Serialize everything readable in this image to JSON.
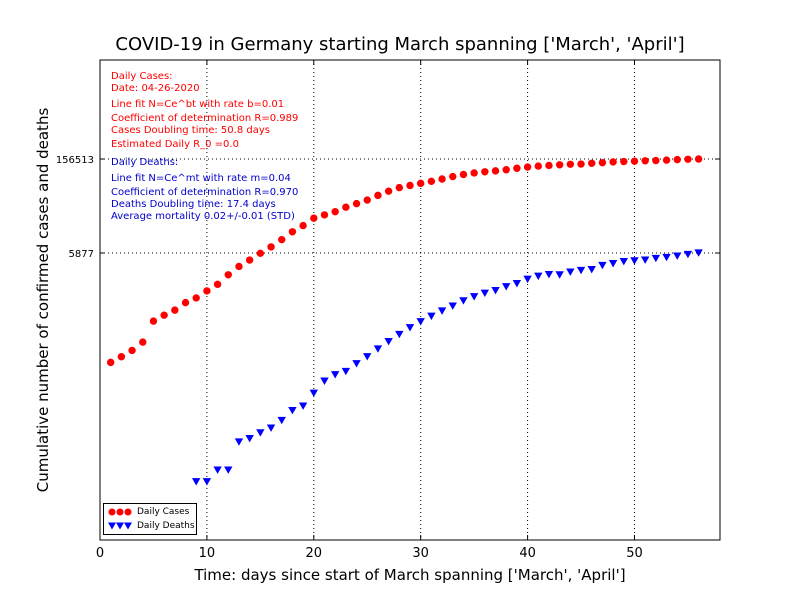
{
  "chart_data": {
    "type": "scatter",
    "title": "COVID-19 in Germany starting March spanning ['March', 'April']",
    "xlabel": "Time: days since start of March spanning ['March', 'April']",
    "ylabel": "Cumulative number of confirmed cases and deaths",
    "xlim": [
      0,
      58
    ],
    "x_ticks": [
      "0",
      "10",
      "20",
      "30",
      "40",
      "50"
    ],
    "y_scale": "log",
    "y_ticks": [
      {
        "label": "5877",
        "value": 5877
      },
      {
        "label": "156513",
        "value": 156513
      }
    ],
    "grid": true,
    "legend_placement": "lower-left",
    "series": [
      {
        "name": "Daily Cases",
        "color": "#ff0000",
        "marker": "circle",
        "x": [
          1,
          2,
          3,
          4,
          5,
          6,
          7,
          8,
          9,
          10,
          11,
          12,
          13,
          14,
          15,
          16,
          17,
          18,
          19,
          20,
          21,
          22,
          23,
          24,
          25,
          26,
          27,
          28,
          29,
          30,
          31,
          32,
          33,
          34,
          35,
          36,
          37,
          38,
          39,
          40,
          41,
          42,
          43,
          44,
          45,
          46,
          47,
          48,
          49,
          50,
          51,
          52,
          53,
          54,
          55,
          56
        ],
        "values": [
          129,
          157,
          196,
          262,
          545,
          670,
          800,
          1040,
          1224,
          1565,
          1966,
          2745,
          3675,
          4599,
          5813,
          7272,
          9367,
          12327,
          15320,
          19848,
          22213,
          24873,
          29056,
          32986,
          37323,
          43938,
          50871,
          57695,
          62095,
          66885,
          71808,
          77872,
          84794,
          91159,
          96092,
          100123,
          103374,
          107663,
          113296,
          118181,
          122171,
          124908,
          127854,
          130072,
          131359,
          134753,
          137698,
          141397,
          143342,
          145184,
          147065,
          148291,
          150648,
          153129,
          154999,
          156513
        ]
      },
      {
        "name": "Daily Deaths",
        "color": "#0000ff",
        "marker": "triangle-down",
        "x": [
          9,
          10,
          11,
          12,
          13,
          14,
          15,
          16,
          17,
          18,
          19,
          20,
          21,
          22,
          23,
          24,
          25,
          26,
          27,
          28,
          29,
          30,
          31,
          32,
          33,
          34,
          35,
          36,
          37,
          38,
          39,
          40,
          41,
          42,
          43,
          44,
          45,
          46,
          47,
          48,
          49,
          50,
          51,
          52,
          53,
          54,
          55,
          56
        ],
        "values": [
          2,
          2,
          3,
          3,
          8,
          9,
          11,
          13,
          17,
          24,
          28,
          44,
          67,
          84,
          94,
          123,
          157,
          206,
          267,
          342,
          433,
          533,
          645,
          775,
          920,
          1107,
          1275,
          1444,
          1584,
          1810,
          2016,
          2349,
          2607,
          2767,
          2736,
          3022,
          3194,
          3294,
          3804,
          4052,
          4352,
          4459,
          4586,
          4862,
          5033,
          5279,
          5575,
          5877
        ]
      }
    ],
    "annotations_cases": [
      "Daily Cases:",
      "Date: 04-26-2020",
      "Line fit N=Ce^bt with rate b=0.01",
      "Coefficient of determination R=0.989",
      "Cases Doubling time: 50.8 days",
      "Estimated Daily R_0 =0.0"
    ],
    "annotations_deaths": [
      "Daily Deaths:",
      "Line fit N=Ce^mt with rate m=0.04",
      "Coefficient of determination R=0.970",
      "Deaths Doubling time: 17.4 days",
      "Average mortality 0.02+/-0.01 (STD)"
    ]
  }
}
